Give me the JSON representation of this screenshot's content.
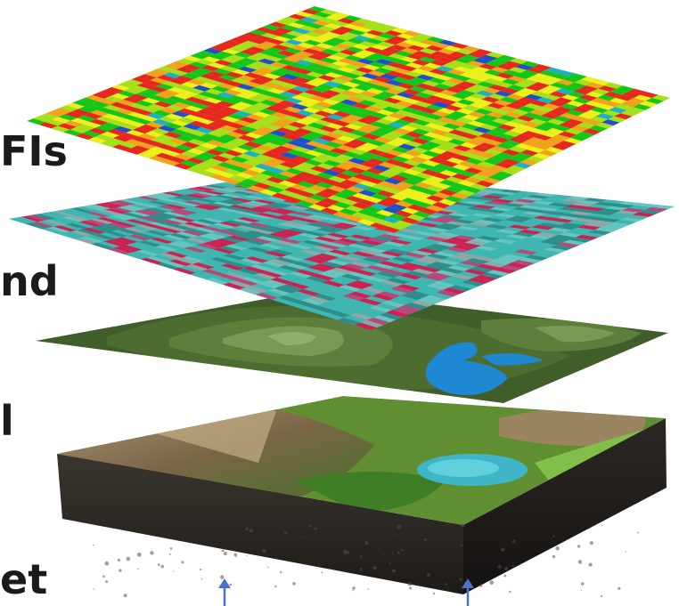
{
  "labels": [
    {
      "text": "FIs"
    },
    {
      "text": "nd"
    },
    {
      "text": "l"
    },
    {
      "text": "et"
    }
  ],
  "layers": [
    {
      "name": "index-heatmap-layer",
      "palette": [
        "#15c61a",
        "#a6e01c",
        "#eef01c",
        "#f4a11d",
        "#e8261f",
        "#1f4fcf",
        "#1fb0c9"
      ]
    },
    {
      "name": "satellite-imagery-layer",
      "palette": [
        "#3fb6b0",
        "#67c4bf",
        "#2e8e8c",
        "#d02050",
        "#b54a7a",
        "#8fa7a6"
      ]
    },
    {
      "name": "terrain-model-layer",
      "palette": [
        "#3f5e2a",
        "#4c6c30",
        "#5e7f3c",
        "#789a52",
        "#8fb06a",
        "#1e88d2"
      ]
    },
    {
      "name": "landscape-block",
      "palette": [
        "#2d2a26",
        "#6b5a40",
        "#a08a62",
        "#4f8f2f",
        "#7fbf4a",
        "#3fb6c8"
      ]
    }
  ],
  "arrows": {
    "color": "#4a72c8",
    "count": 2
  }
}
